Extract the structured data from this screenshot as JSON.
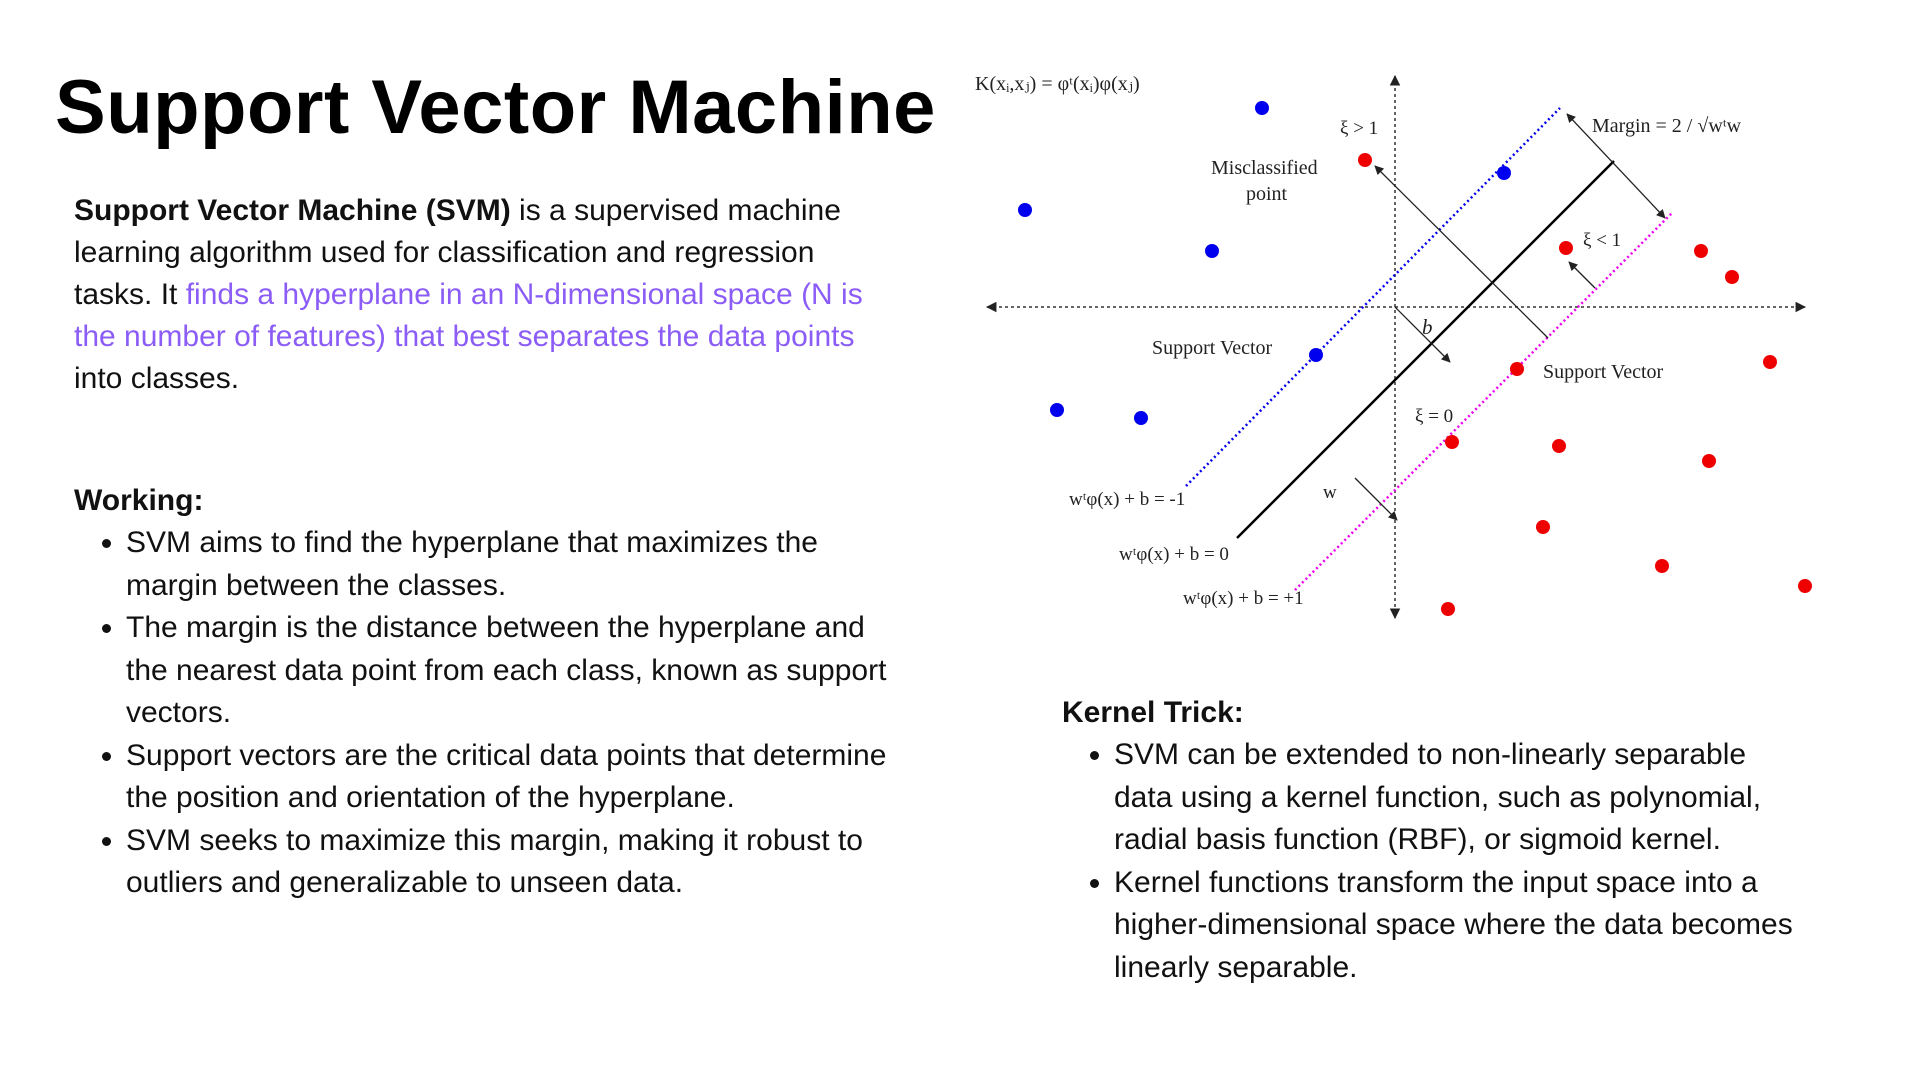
{
  "title": "Support Vector Machine",
  "intro": {
    "bold": "Support Vector Machine (SVM)",
    "text1": " is a supervised machine learning algorithm used for classification and regression tasks. It ",
    "highlight": "finds a hyperplane in an N-dimensional space (N is the number of features) that best separates the data points",
    "text2": " into classes.",
    "highlight_color": "#8b5cf6"
  },
  "working": {
    "heading": "Working:",
    "items": [
      "SVM aims to find the hyperplane that maximizes the margin between the classes.",
      "The margin is the distance between the hyperplane and the nearest data point from each class, known as support vectors.",
      "Support vectors are the critical data points that determine the position and orientation of the hyperplane.",
      "SVM seeks to maximize this margin, making it robust to outliers and generalizable to unseen data."
    ]
  },
  "kernel": {
    "heading": "Kernel Trick:",
    "items": [
      "SVM can be extended to non-linearly separable data using a kernel function, such as polynomial, radial basis function (RBF), or sigmoid kernel.",
      "Kernel functions transform the input space into a higher-dimensional space where the data becomes linearly separable."
    ]
  },
  "diagram": {
    "kernel_formula": "K(xᵢ,xⱼ) = φᵗ(xᵢ)φ(xⱼ)",
    "xi_gt_1": "ξ > 1",
    "misclassified_line1": "Misclassified",
    "misclassified_line2": "point",
    "margin": "Margin = 2 / √wᵗw",
    "xi_lt_1": "ξ < 1",
    "b_label": "b",
    "support_vector_left": "Support Vector",
    "support_vector_right": "Support Vector",
    "xi_eq_0": "ξ = 0",
    "w_label": "w",
    "eq_minus1": "wᵗφ(x) + b = -1",
    "eq_zero": "wᵗφ(x) + b = 0",
    "eq_plus1": "wᵗφ(x) + b = +1",
    "colors": {
      "class_a": "#0000ee",
      "class_b": "#ee0000",
      "plus_margin": "#ee00ee",
      "minus_margin": "#0000ee"
    }
  }
}
